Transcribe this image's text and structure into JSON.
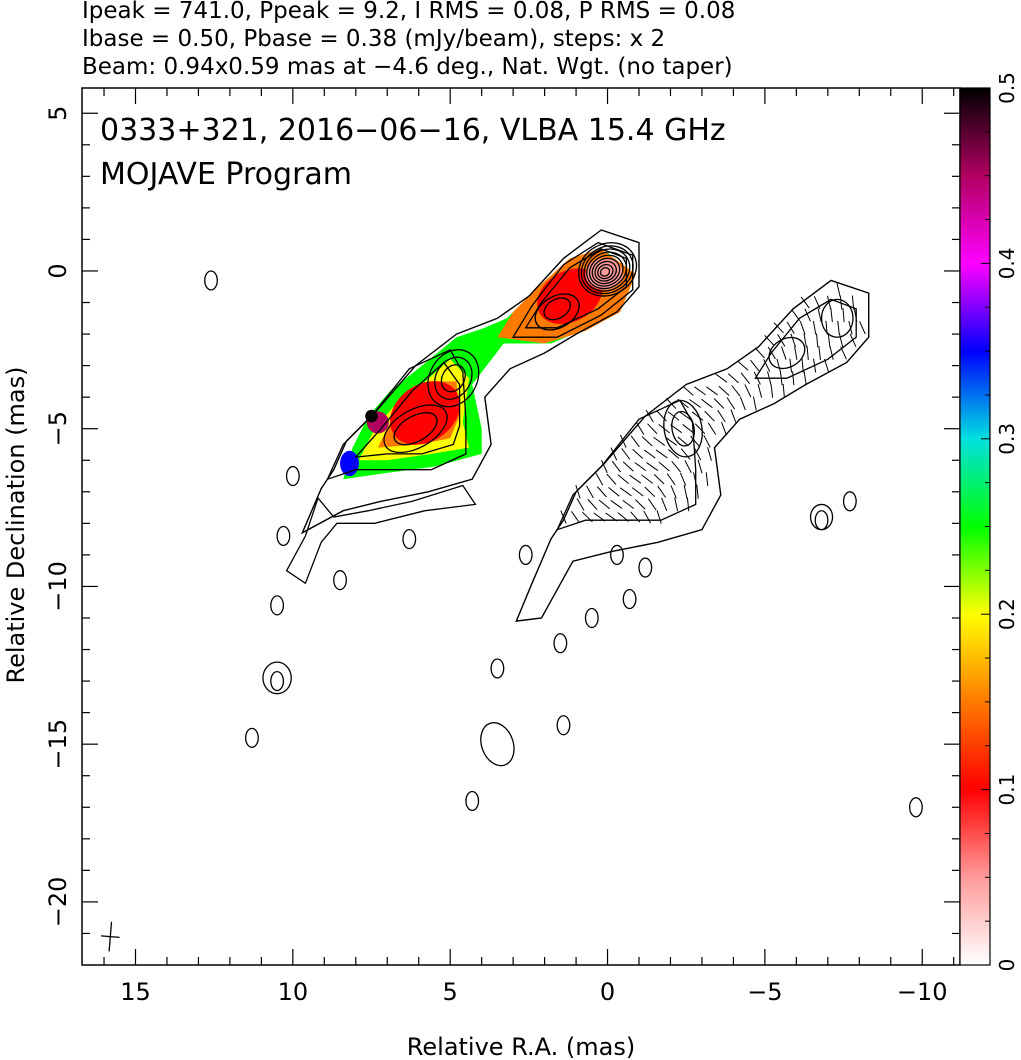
{
  "chart_data": {
    "type": "heatmap",
    "header_lines": [
      "Ipeak = 741.0, Ppeak = 9.2, I RMS = 0.08, P RMS = 0.08",
      "Ibase = 0.50, Pbase = 0.38 (mJy/beam), steps: x 2",
      "Beam: 0.94x0.59 mas at −4.6 deg., Nat. Wgt. (no taper)"
    ],
    "title": "0333+321, 2016−06−16, VLBA 15.4 GHz",
    "subtitle": "MOJAVE Program",
    "xlabel": "Relative R.A. (mas)",
    "ylabel": "Relative Declination (mas)",
    "xlim": [
      16.7,
      -11.2
    ],
    "ylim": [
      -22.0,
      5.8
    ],
    "x_ticks": [
      15,
      10,
      5,
      0,
      -5,
      -10
    ],
    "x_tick_labels": [
      "15",
      "10",
      "5",
      "0",
      "−5",
      "−10"
    ],
    "y_ticks": [
      5,
      0,
      -5,
      -10,
      -15,
      -20
    ],
    "y_tick_labels": [
      "5",
      "0",
      "−5",
      "−10",
      "−15",
      "−20"
    ],
    "colorbar": {
      "min": 0,
      "max": 0.5,
      "ticks": [
        0,
        0.1,
        0.2,
        0.3,
        0.4,
        0.5
      ],
      "tick_labels": [
        "0",
        "0.1",
        "0.2",
        "0.3",
        "0.4",
        "0.5"
      ],
      "stops": [
        "#ffffff",
        "#ff9a9a",
        "#ff0000",
        "#ff7a00",
        "#ffff00",
        "#00ff00",
        "#00e0e0",
        "#0000ff",
        "#ff00ff",
        "#b00060",
        "#000000"
      ]
    },
    "beam": {
      "major_mas": 0.94,
      "minor_mas": 0.59,
      "pa_deg": -4.6,
      "x": 15.8,
      "y": -21.1
    },
    "total_intensity_panel": {
      "core": {
        "x": 0,
        "y": 0
      },
      "contour_levels": 9,
      "jet_components": [
        {
          "x": 1.5,
          "y": -1.2,
          "levels": 5
        },
        {
          "x": 4.9,
          "y": -3.3,
          "levels": 4
        },
        {
          "x": 6.0,
          "y": -4.8,
          "levels": 3
        }
      ],
      "isolated_blobs": [
        {
          "x": 12.6,
          "y": -0.3
        },
        {
          "x": 10.0,
          "y": -6.5
        },
        {
          "x": 6.3,
          "y": -8.5
        },
        {
          "x": 8.5,
          "y": -9.8
        },
        {
          "x": 10.3,
          "y": -8.4
        },
        {
          "x": 10.5,
          "y": -10.6
        },
        {
          "x": 10.5,
          "y": -13.0
        },
        {
          "x": 11.3,
          "y": -14.8
        }
      ]
    },
    "polarization_panel": {
      "offset_x": -7.3,
      "offset_y": -1.6,
      "isolated_blobs": [
        {
          "x": 3.5,
          "y": -12.6
        },
        {
          "x": 2.6,
          "y": -9.0
        },
        {
          "x": 1.5,
          "y": -11.8
        },
        {
          "x": 0.5,
          "y": -11.0
        },
        {
          "x": -0.7,
          "y": -10.4
        },
        {
          "x": -1.2,
          "y": -9.4
        },
        {
          "x": 1.4,
          "y": -14.4
        },
        {
          "x": 4.3,
          "y": -16.8
        },
        {
          "x": -0.3,
          "y": -9.0
        },
        {
          "x": -6.8,
          "y": -7.9
        },
        {
          "x": -7.7,
          "y": -7.3
        },
        {
          "x": -9.8,
          "y": -17.0
        }
      ]
    }
  }
}
